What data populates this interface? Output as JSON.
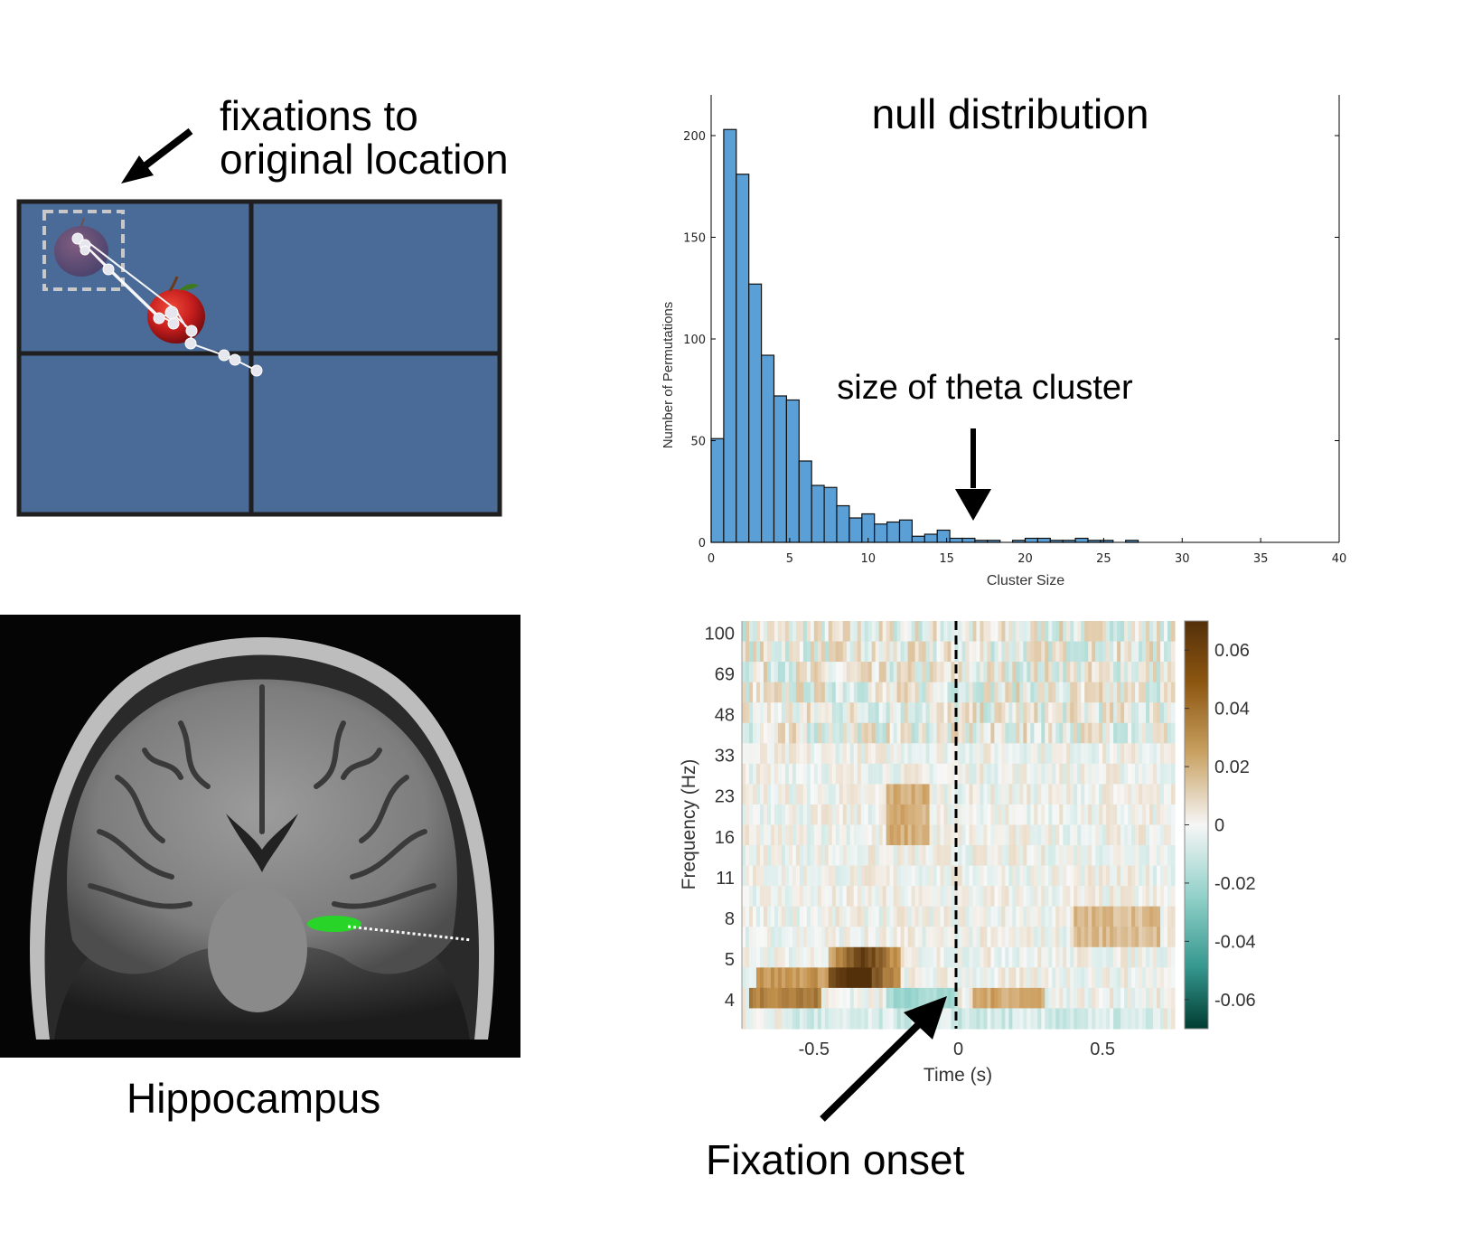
{
  "annotations": {
    "fixations_line1": "fixations to",
    "fixations_line2": "original location",
    "hippocampus": "Hippocampus",
    "fixation_onset": "Fixation onset",
    "theta_cluster": "size of theta cluster"
  },
  "colors": {
    "panel_blue": "#4a6b97",
    "bar_blue": "#5a9fd6",
    "mri_green": "#28d428"
  },
  "chart_data": [
    {
      "type": "bar",
      "title": "null distribution",
      "xlabel": "Cluster Size",
      "ylabel": "Number of Permutations",
      "xlim": [
        0,
        40
      ],
      "ylim": [
        0,
        220
      ],
      "xticks": [
        0,
        5,
        10,
        15,
        20,
        25,
        30,
        35,
        40
      ],
      "yticks": [
        0,
        50,
        100,
        150,
        200
      ],
      "bin_width": 0.8,
      "bin_start": 0,
      "values": [
        51,
        203,
        181,
        127,
        92,
        72,
        70,
        40,
        28,
        27,
        18,
        12,
        14,
        9,
        10,
        11,
        3,
        4,
        6,
        2,
        2,
        1,
        1,
        0,
        1,
        2,
        2,
        1,
        1,
        2,
        1,
        1,
        0,
        1,
        0,
        0,
        0,
        0,
        0,
        0,
        0,
        0,
        0,
        0,
        0,
        0,
        0,
        0,
        0,
        0,
        0,
        0,
        0,
        0,
        0,
        0,
        0,
        0,
        0,
        0,
        0,
        0,
        0,
        0,
        0,
        0,
        0,
        0,
        0,
        0,
        0,
        0,
        0,
        0,
        0,
        0,
        0,
        0,
        0,
        0,
        1,
        0,
        0,
        0,
        0,
        0,
        0,
        0,
        0,
        0
      ],
      "annotation": "size of theta cluster",
      "annotation_x": 16.5
    },
    {
      "type": "heatmap",
      "xlabel": "Time (s)",
      "ylabel": "Frequency (Hz)",
      "xticks": [
        -0.5,
        0,
        0.5
      ],
      "xlim": [
        -0.75,
        0.75
      ],
      "yticks": [
        "100",
        "69",
        "48",
        "33",
        "23",
        "16",
        "11",
        "8",
        "5",
        "4"
      ],
      "colorbar_ticks": [
        "0.06",
        "0.04",
        "0.02",
        "0",
        "-0.02",
        "-0.04",
        "-0.06"
      ],
      "colorbar_range": [
        -0.07,
        0.07
      ],
      "event_line_x": 0,
      "annotation": "Fixation onset"
    }
  ]
}
